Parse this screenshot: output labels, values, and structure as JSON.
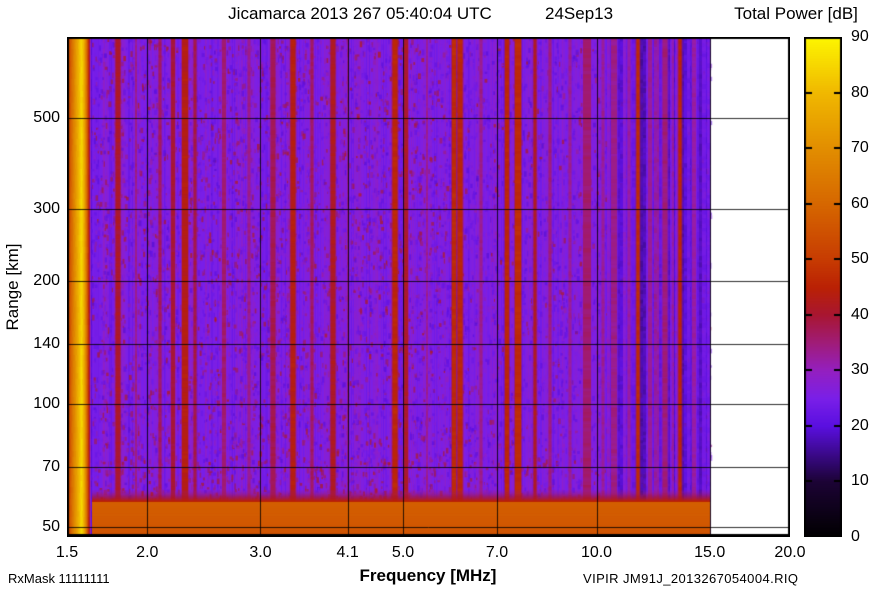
{
  "header": {
    "title_left": "Jicamarca 2013 267 05:40:04 UTC",
    "title_right": "24Sep13"
  },
  "footer": {
    "rx_mask": "RxMask 11111111",
    "source": "VIPIR  JM91J_2013267054004.RIQ"
  },
  "chart_data": {
    "type": "heatmap",
    "title": "Jicamarca 2013 267 05:40:04 UTC  24Sep13",
    "xlabel": "Frequency [MHz]",
    "ylabel": "Range [km]",
    "colorbar_label": "Total Power [dB]",
    "x_scale": "log",
    "y_scale": "log",
    "xlim": [
      1.5,
      20.0
    ],
    "ylim": [
      47.2,
      790
    ],
    "x_ticks": [
      1.5,
      2.0,
      3.0,
      4.1,
      5.0,
      7.0,
      10.0,
      15.0,
      20.0
    ],
    "x_tick_labels": [
      "1.5",
      "2.0",
      "3.0",
      "4.1",
      "5.0",
      "7.0",
      "10.0",
      "15.0",
      "20.0"
    ],
    "y_ticks": [
      50,
      70,
      100,
      140,
      200,
      300,
      500
    ],
    "y_tick_labels": [
      "50",
      "70",
      "100",
      "140",
      "200",
      "300",
      "500"
    ],
    "colorbar_range": [
      0,
      90
    ],
    "colorbar_ticks": [
      0,
      10,
      20,
      30,
      40,
      50,
      60,
      70,
      80,
      90
    ],
    "data_extent_mhz": [
      1.5,
      15.0
    ],
    "grid": true,
    "palette": [
      [
        0,
        "#000000"
      ],
      [
        10,
        "#1c0335"
      ],
      [
        20,
        "#5a0fe0"
      ],
      [
        25,
        "#7a1fe8"
      ],
      [
        30,
        "#941fc0"
      ],
      [
        35,
        "#a01c78"
      ],
      [
        40,
        "#a81632"
      ],
      [
        45,
        "#ba2104"
      ],
      [
        50,
        "#c73c02"
      ],
      [
        60,
        "#d66700"
      ],
      [
        70,
        "#e28e00"
      ],
      [
        80,
        "#f0b800"
      ],
      [
        90,
        "#fdf600"
      ]
    ],
    "background": {
      "db": 25,
      "noise_db": 4
    },
    "left_band": {
      "freq_mhz": [
        1.5,
        1.63
      ],
      "peak_db": 85,
      "edge_db": 44
    },
    "bottom_band": {
      "range_km": [
        47.2,
        58
      ],
      "db": 57,
      "transition_db": 44
    },
    "banded_region": {
      "freq_mhz": [
        10.4,
        15.0
      ],
      "db_range": [
        16,
        33
      ]
    },
    "rfi_stripes": [
      {
        "f": 1.8,
        "w": 5,
        "db": 41
      },
      {
        "f": 1.92,
        "w": 2,
        "db": 34
      },
      {
        "f": 2.09,
        "w": 3,
        "db": 37
      },
      {
        "f": 2.19,
        "w": 4,
        "db": 40
      },
      {
        "f": 2.29,
        "w": 6,
        "db": 44
      },
      {
        "f": 2.37,
        "w": 3,
        "db": 39
      },
      {
        "f": 2.63,
        "w": 4,
        "db": 36
      },
      {
        "f": 2.88,
        "w": 3,
        "db": 34
      },
      {
        "f": 3.14,
        "w": 5,
        "db": 38
      },
      {
        "f": 3.37,
        "w": 5,
        "db": 44
      },
      {
        "f": 3.61,
        "w": 3,
        "db": 37
      },
      {
        "f": 3.89,
        "w": 5,
        "db": 42
      },
      {
        "f": 4.1,
        "w": 2,
        "db": 34
      },
      {
        "f": 4.85,
        "w": 5,
        "db": 46
      },
      {
        "f": 5.06,
        "w": 4,
        "db": 41
      },
      {
        "f": 5.45,
        "w": 2,
        "db": 33
      },
      {
        "f": 6.0,
        "w": 4,
        "db": 47
      },
      {
        "f": 6.13,
        "w": 5,
        "db": 46
      },
      {
        "f": 6.6,
        "w": 3,
        "db": 34
      },
      {
        "f": 7.25,
        "w": 4,
        "db": 46
      },
      {
        "f": 7.56,
        "w": 6,
        "db": 47
      },
      {
        "f": 8.02,
        "w": 3,
        "db": 42
      },
      {
        "f": 8.46,
        "w": 3,
        "db": 35
      },
      {
        "f": 9.1,
        "w": 3,
        "db": 33
      },
      {
        "f": 9.66,
        "w": 8,
        "db": 36
      },
      {
        "f": 10.25,
        "w": 3,
        "db": 33
      },
      {
        "f": 10.65,
        "w": 6,
        "db": 34
      },
      {
        "f": 11.25,
        "w": 3,
        "db": 32
      },
      {
        "f": 11.6,
        "w": 3,
        "db": 47
      },
      {
        "f": 12.1,
        "w": 4,
        "db": 33
      },
      {
        "f": 12.8,
        "w": 5,
        "db": 35
      },
      {
        "f": 13.5,
        "w": 3,
        "db": 46
      },
      {
        "f": 14.2,
        "w": 4,
        "db": 32
      }
    ]
  }
}
